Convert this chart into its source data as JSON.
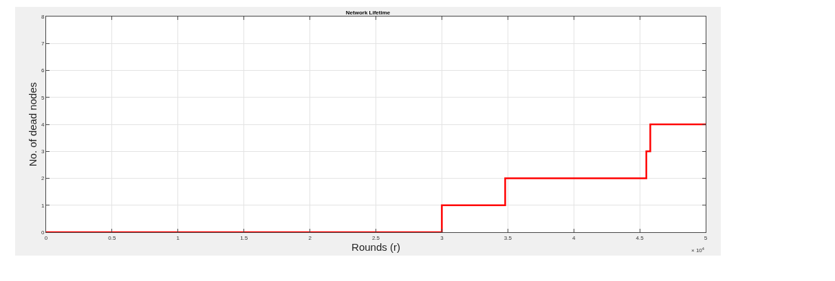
{
  "chart_data": {
    "type": "step",
    "title": "Network Lifetime",
    "xlabel": "Rounds (r)",
    "ylabel": "No. of dead nodes",
    "x": [
      0,
      3,
      3.48,
      4.55,
      4.58,
      5
    ],
    "series": [
      {
        "color": "#ff0000",
        "values": [
          0,
          1,
          2,
          3,
          4,
          4
        ]
      }
    ],
    "xlim": [
      0,
      5
    ],
    "xticks": [
      0,
      0.5,
      1,
      1.5,
      2,
      2.5,
      3,
      3.5,
      4,
      4.5,
      5
    ],
    "ylim": [
      0,
      8
    ],
    "yticks": [
      0,
      1,
      2,
      3,
      4,
      5,
      6,
      7,
      8
    ],
    "annotations": [
      "× 10$^{4}$"
    ],
    "grid": true,
    "marker": "none",
    "line_style": "solid"
  }
}
